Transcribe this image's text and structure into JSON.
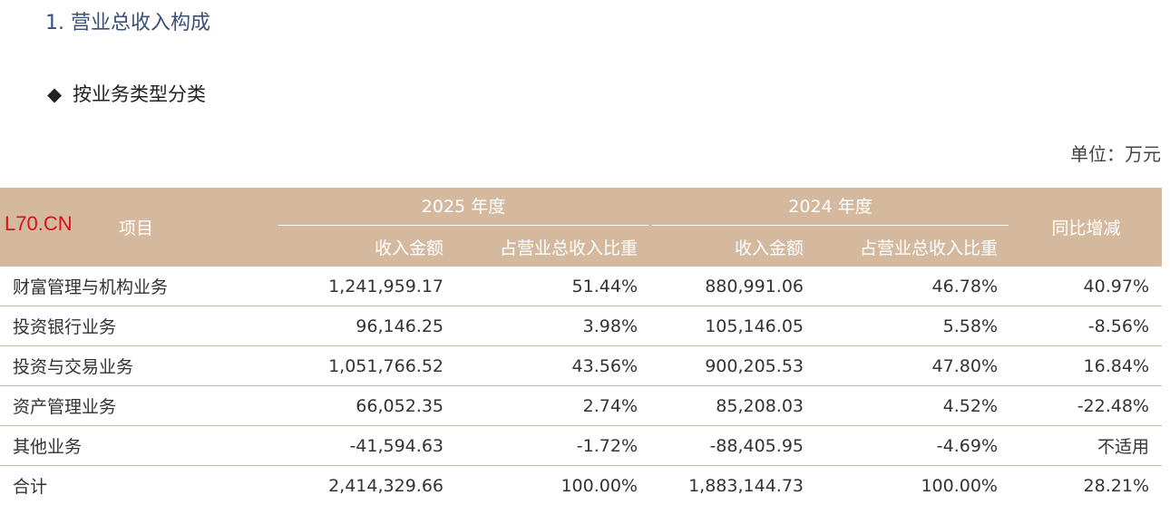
{
  "section": {
    "title": "1. 营业总收入构成"
  },
  "subsection": {
    "bullet": "◆",
    "title": "按业务类型分类"
  },
  "unit_label": "单位：万元",
  "watermark": "L70.CN",
  "table": {
    "header": {
      "project": "项目",
      "year_2025": "2025 年度",
      "year_2024": "2024 年度",
      "yoy": "同比增减",
      "revenue": "收入金额",
      "share": "占营业总收入比重"
    },
    "rows": [
      {
        "name": "财富管理与机构业务",
        "rev_2025": "1,241,959.17",
        "share_2025": "51.44%",
        "rev_2024": "880,991.06",
        "share_2024": "46.78%",
        "yoy": "40.97%"
      },
      {
        "name": "投资银行业务",
        "rev_2025": "96,146.25",
        "share_2025": "3.98%",
        "rev_2024": "105,146.05",
        "share_2024": "5.58%",
        "yoy": "-8.56%"
      },
      {
        "name": "投资与交易业务",
        "rev_2025": "1,051,766.52",
        "share_2025": "43.56%",
        "rev_2024": "900,205.53",
        "share_2024": "47.80%",
        "yoy": "16.84%"
      },
      {
        "name": "资产管理业务",
        "rev_2025": "66,052.35",
        "share_2025": "2.74%",
        "rev_2024": "85,208.03",
        "share_2024": "4.52%",
        "yoy": "-22.48%"
      },
      {
        "name": "其他业务",
        "rev_2025": "-41,594.63",
        "share_2025": "-1.72%",
        "rev_2024": "-88,405.95",
        "share_2024": "-4.69%",
        "yoy": "不适用"
      },
      {
        "name": "合计",
        "rev_2025": "2,414,329.66",
        "share_2025": "100.00%",
        "rev_2024": "1,883,144.73",
        "share_2024": "100.00%",
        "yoy": "28.21%"
      }
    ]
  }
}
